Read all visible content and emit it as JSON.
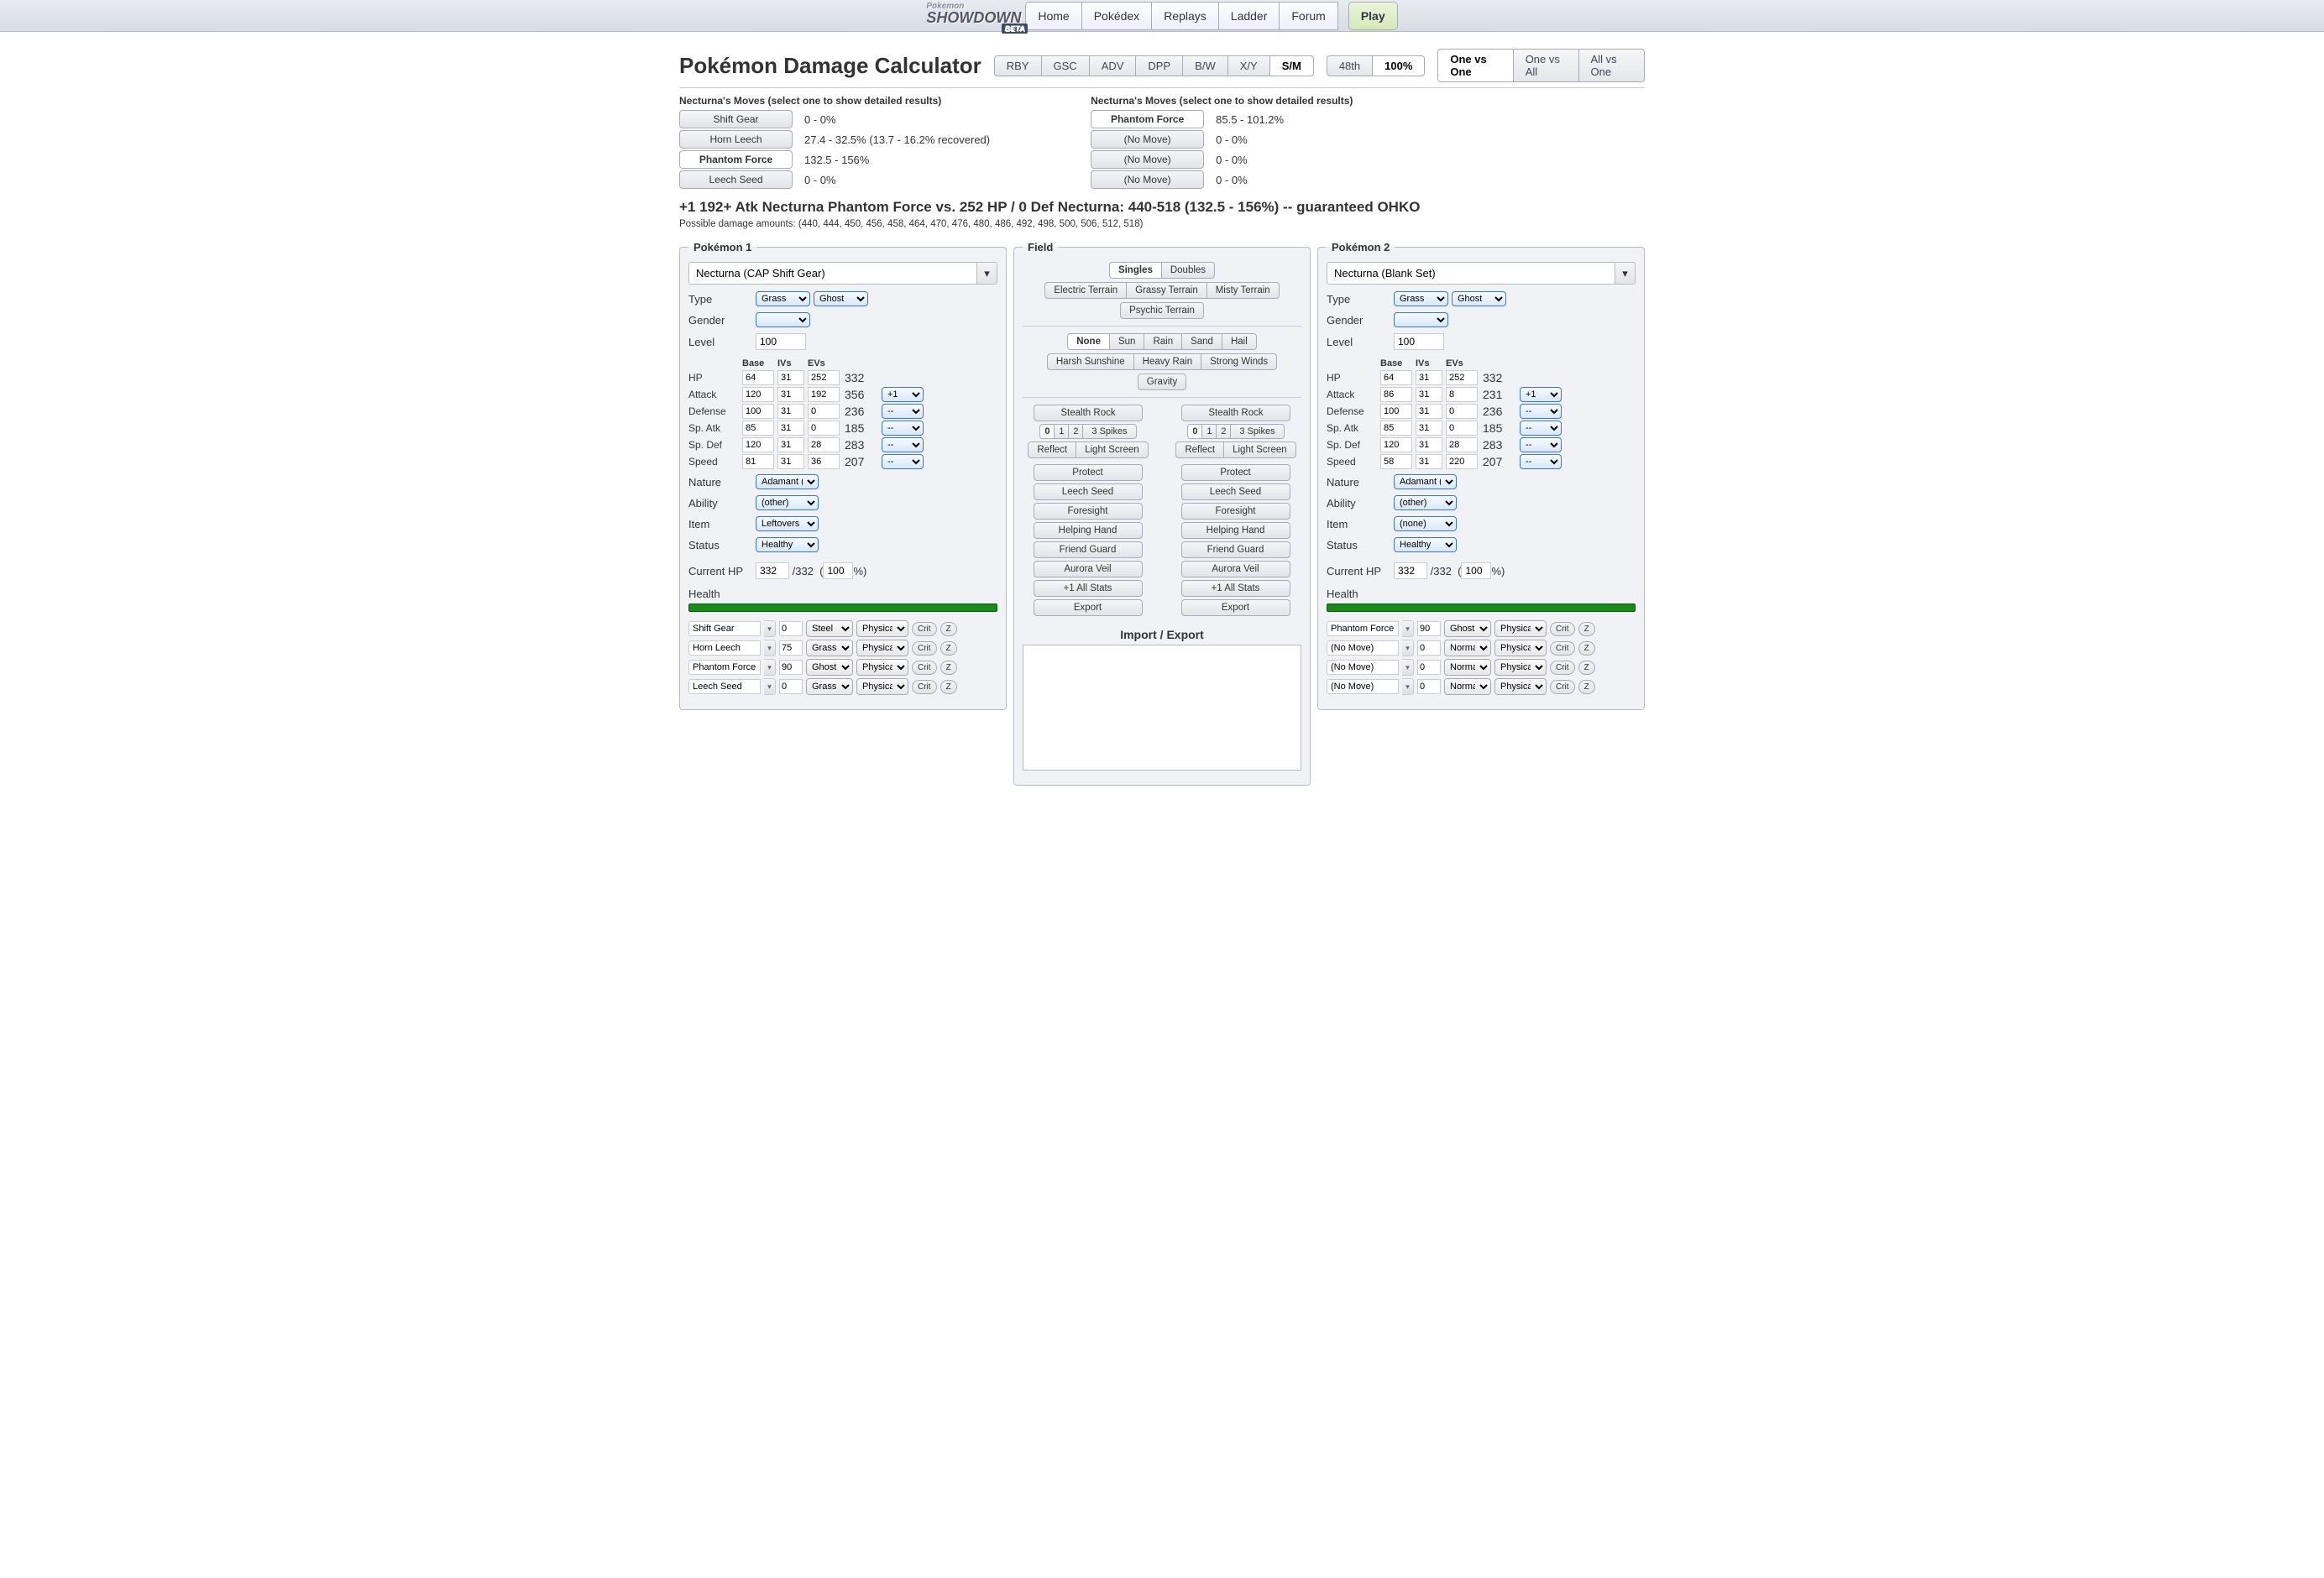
{
  "topnav": {
    "logo": "SHOWDOWN",
    "beta": "BETA",
    "links": [
      "Home",
      "Pokédex",
      "Replays",
      "Ladder",
      "Forum"
    ],
    "play": "Play"
  },
  "page_title": "Pokémon Damage Calculator",
  "gens": [
    "RBY",
    "GSC",
    "ADV",
    "DPP",
    "B/W",
    "X/Y",
    "S/M"
  ],
  "gen_active": 6,
  "lvl_tabs": [
    "48th",
    "100%"
  ],
  "lvl_active": 1,
  "modes": [
    "One vs One",
    "One vs All",
    "All vs One"
  ],
  "mode_active": 0,
  "left_moves_label": "Necturna's Moves (select one to show detailed results)",
  "right_moves_label": "Necturna's Moves (select one to show detailed results)",
  "left_moves": [
    {
      "name": "Shift Gear",
      "dmg": "0 - 0%",
      "sel": false
    },
    {
      "name": "Horn Leech",
      "dmg": "27.4 - 32.5% (13.7 - 16.2% recovered)",
      "sel": false
    },
    {
      "name": "Phantom Force",
      "dmg": "132.5 - 156%",
      "sel": true
    },
    {
      "name": "Leech Seed",
      "dmg": "0 - 0%",
      "sel": false
    }
  ],
  "right_moves": [
    {
      "name": "Phantom Force",
      "dmg": "85.5 - 101.2%",
      "sel": true
    },
    {
      "name": "(No Move)",
      "dmg": "0 - 0%",
      "sel": false
    },
    {
      "name": "(No Move)",
      "dmg": "0 - 0%",
      "sel": false
    },
    {
      "name": "(No Move)",
      "dmg": "0 - 0%",
      "sel": false
    }
  ],
  "result": "+1 192+ Atk Necturna Phantom Force vs. 252 HP / 0 Def Necturna: 440-518 (132.5 - 156%) -- guaranteed OHKO",
  "amounts": "Possible damage amounts: (440, 444, 450, 456, 458, 464, 470, 476, 480, 486, 492, 498, 500, 506, 512, 518)",
  "p1": {
    "legend": "Pokémon 1",
    "set": "Necturna (CAP Shift Gear)",
    "type1": "Grass",
    "type2": "Ghost",
    "level": "100",
    "hdr": [
      "",
      "Base",
      "IVs",
      "EVs",
      "",
      ""
    ],
    "stats": [
      {
        "n": "HP",
        "b": "64",
        "iv": "31",
        "ev": "252",
        "calc": "332",
        "boost": ""
      },
      {
        "n": "Attack",
        "b": "120",
        "iv": "31",
        "ev": "192",
        "calc": "356",
        "boost": "+1"
      },
      {
        "n": "Defense",
        "b": "100",
        "iv": "31",
        "ev": "0",
        "calc": "236",
        "boost": "--"
      },
      {
        "n": "Sp. Atk",
        "b": "85",
        "iv": "31",
        "ev": "0",
        "calc": "185",
        "boost": "--"
      },
      {
        "n": "Sp. Def",
        "b": "120",
        "iv": "31",
        "ev": "28",
        "calc": "283",
        "boost": "--"
      },
      {
        "n": "Speed",
        "b": "81",
        "iv": "31",
        "ev": "36",
        "calc": "207",
        "boost": "--"
      }
    ],
    "nature": "Adamant (-",
    "ability": "(other)",
    "item": "Leftovers",
    "status": "Healthy",
    "curhp": "332",
    "maxhp": "332",
    "pct": "100",
    "moves": [
      {
        "name": "Shift Gear",
        "bp": "0",
        "type": "Steel",
        "cat": "Physical"
      },
      {
        "name": "Horn Leech",
        "bp": "75",
        "type": "Grass",
        "cat": "Physical"
      },
      {
        "name": "Phantom Force",
        "bp": "90",
        "type": "Ghost",
        "cat": "Physical"
      },
      {
        "name": "Leech Seed",
        "bp": "0",
        "type": "Grass",
        "cat": "Physical"
      }
    ]
  },
  "p2": {
    "legend": "Pokémon 2",
    "set": "Necturna (Blank Set)",
    "type1": "Grass",
    "type2": "Ghost",
    "level": "100",
    "stats": [
      {
        "n": "HP",
        "b": "64",
        "iv": "31",
        "ev": "252",
        "calc": "332",
        "boost": ""
      },
      {
        "n": "Attack",
        "b": "86",
        "iv": "31",
        "ev": "8",
        "calc": "231",
        "boost": "+1"
      },
      {
        "n": "Defense",
        "b": "100",
        "iv": "31",
        "ev": "0",
        "calc": "236",
        "boost": "--"
      },
      {
        "n": "Sp. Atk",
        "b": "85",
        "iv": "31",
        "ev": "0",
        "calc": "185",
        "boost": "--"
      },
      {
        "n": "Sp. Def",
        "b": "120",
        "iv": "31",
        "ev": "28",
        "calc": "283",
        "boost": "--"
      },
      {
        "n": "Speed",
        "b": "58",
        "iv": "31",
        "ev": "220",
        "calc": "207",
        "boost": "--"
      }
    ],
    "nature": "Adamant (-",
    "ability": "(other)",
    "item": "(none)",
    "status": "Healthy",
    "curhp": "332",
    "maxhp": "332",
    "pct": "100",
    "moves": [
      {
        "name": "Phantom Force",
        "bp": "90",
        "type": "Ghost",
        "cat": "Physical"
      },
      {
        "name": "(No Move)",
        "bp": "0",
        "type": "Normal",
        "cat": "Physical"
      },
      {
        "name": "(No Move)",
        "bp": "0",
        "type": "Normal",
        "cat": "Physical"
      },
      {
        "name": "(No Move)",
        "bp": "0",
        "type": "Normal",
        "cat": "Physical"
      }
    ]
  },
  "field": {
    "legend": "Field",
    "format": [
      "Singles",
      "Doubles"
    ],
    "format_active": 0,
    "terrains": [
      "Electric Terrain",
      "Grassy Terrain",
      "Misty Terrain",
      "Psychic Terrain"
    ],
    "weather": [
      "None",
      "Sun",
      "Rain",
      "Sand",
      "Hail"
    ],
    "weather_active": 0,
    "strong": [
      "Harsh Sunshine",
      "Heavy Rain",
      "Strong Winds"
    ],
    "gravity": "Gravity",
    "sr": "Stealth Rock",
    "spikes": "3 Spikes",
    "side_btns": [
      "Reflect",
      "Light Screen",
      "Protect",
      "Leech Seed",
      "Foresight",
      "Helping Hand",
      "Friend Guard",
      "Aurora Veil",
      "+1 All Stats"
    ],
    "export": "Export",
    "ie_label": "Import / Export"
  },
  "labels": {
    "type": "Type",
    "gender": "Gender",
    "level": "Level",
    "nature": "Nature",
    "ability": "Ability",
    "item": "Item",
    "status": "Status",
    "curhp": "Current HP",
    "health": "Health",
    "crit": "Crit",
    "z": "Z"
  }
}
